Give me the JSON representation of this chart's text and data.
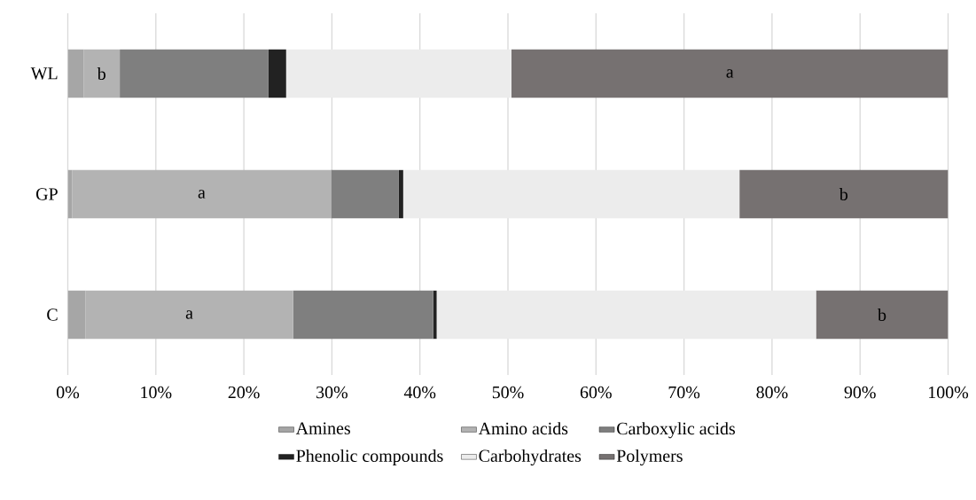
{
  "chart_data": {
    "type": "bar",
    "orientation": "horizontal",
    "stacked": true,
    "categories": [
      "WL",
      "GP",
      "C"
    ],
    "series": [
      {
        "name": "Amines",
        "color": "#a6a6a6",
        "values": [
          1.8,
          0.5,
          2.0
        ]
      },
      {
        "name": "Amino acids",
        "color": "#b3b3b3",
        "values": [
          4.1,
          29.4,
          23.6
        ],
        "value_labels": [
          "b",
          "a",
          "a"
        ]
      },
      {
        "name": "Carboxylic acids",
        "color": "#7f7f7f",
        "values": [
          16.9,
          7.7,
          15.9
        ]
      },
      {
        "name": "Phenolic compounds",
        "color": "#222222",
        "values": [
          2.0,
          0.5,
          0.4
        ]
      },
      {
        "name": "Carbohydrates",
        "color": "#ececec",
        "values": [
          25.6,
          38.2,
          43.1
        ]
      },
      {
        "name": "Polymers",
        "color": "#767171",
        "values": [
          49.6,
          23.7,
          15.0
        ],
        "value_labels": [
          "a",
          "b",
          "b"
        ]
      }
    ],
    "xlim": [
      0,
      100
    ],
    "xticks": [
      {
        "value": 0,
        "label": "0%"
      },
      {
        "value": 10,
        "label": "10%"
      },
      {
        "value": 20,
        "label": "20%"
      },
      {
        "value": 30,
        "label": "30%"
      },
      {
        "value": 40,
        "label": "40%"
      },
      {
        "value": 50,
        "label": "50%"
      },
      {
        "value": 60,
        "label": "60%"
      },
      {
        "value": 70,
        "label": "70%"
      },
      {
        "value": 80,
        "label": "80%"
      },
      {
        "value": 90,
        "label": "90%"
      },
      {
        "value": 100,
        "label": "100%"
      }
    ],
    "grid": "x",
    "legend": "bottom"
  }
}
